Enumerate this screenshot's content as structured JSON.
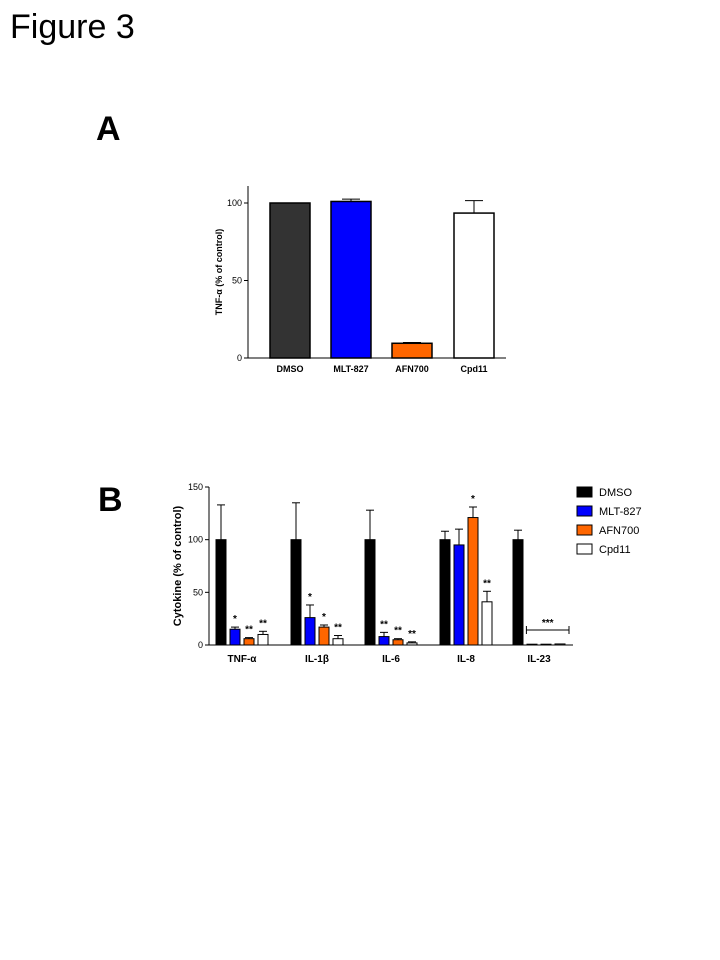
{
  "figure_title": "Figure 3",
  "panel_labels": [
    "A",
    "B"
  ],
  "colors": {
    "DMSO_A": "#333333",
    "DMSO_B": "#000000",
    "MLT-827": "#0000ff",
    "AFN700": "#ff6600",
    "Cpd11": "#ffffff"
  },
  "chart_data": [
    {
      "panel": "A",
      "type": "bar",
      "categories": [
        "DMSO",
        "MLT-827",
        "AFN700",
        "Cpd11"
      ],
      "values": [
        100,
        101,
        9.5,
        93.5
      ],
      "errors": [
        0,
        1.5,
        0.5,
        8
      ],
      "xlabel": "",
      "ylabel": "TNF-α (% of control)",
      "ylim": [
        0,
        110
      ],
      "yticks": [
        "0",
        "50",
        "100"
      ],
      "grid": false
    },
    {
      "panel": "B",
      "type": "bar",
      "categories": [
        "TNF-α",
        "IL-1β",
        "IL-6",
        "IL-8",
        "IL-23"
      ],
      "series": [
        {
          "name": "DMSO",
          "values": [
            100,
            100,
            100,
            100,
            100
          ],
          "errors": [
            33,
            35,
            28,
            8,
            9
          ],
          "sig": [
            "",
            "",
            "",
            "",
            ""
          ]
        },
        {
          "name": "MLT-827",
          "values": [
            15,
            26,
            8,
            95,
            0.3
          ],
          "errors": [
            2,
            12,
            4,
            15,
            0
          ],
          "sig": [
            "*",
            "*",
            "**",
            "",
            ""
          ]
        },
        {
          "name": "AFN700",
          "values": [
            6,
            17,
            5,
            121,
            0.3
          ],
          "errors": [
            1,
            2,
            1,
            10,
            0
          ],
          "sig": [
            "**",
            "*",
            "**",
            "*",
            ""
          ]
        },
        {
          "name": "Cpd11",
          "values": [
            10,
            6,
            2,
            41,
            1
          ],
          "errors": [
            3,
            3,
            1,
            10,
            0
          ],
          "sig": [
            "**",
            "**",
            "**",
            "**",
            ""
          ]
        }
      ],
      "group_annotation": {
        "category": "IL-23",
        "text": "***"
      },
      "xlabel": "",
      "ylabel": "Cytokine (% of control)",
      "ylim": [
        0,
        150
      ],
      "yticks": [
        "0",
        "50",
        "100",
        "150"
      ],
      "legend": {
        "placement": "right",
        "entries": [
          "DMSO",
          "MLT-827",
          "AFN700",
          "Cpd11"
        ]
      },
      "grid": false
    }
  ]
}
